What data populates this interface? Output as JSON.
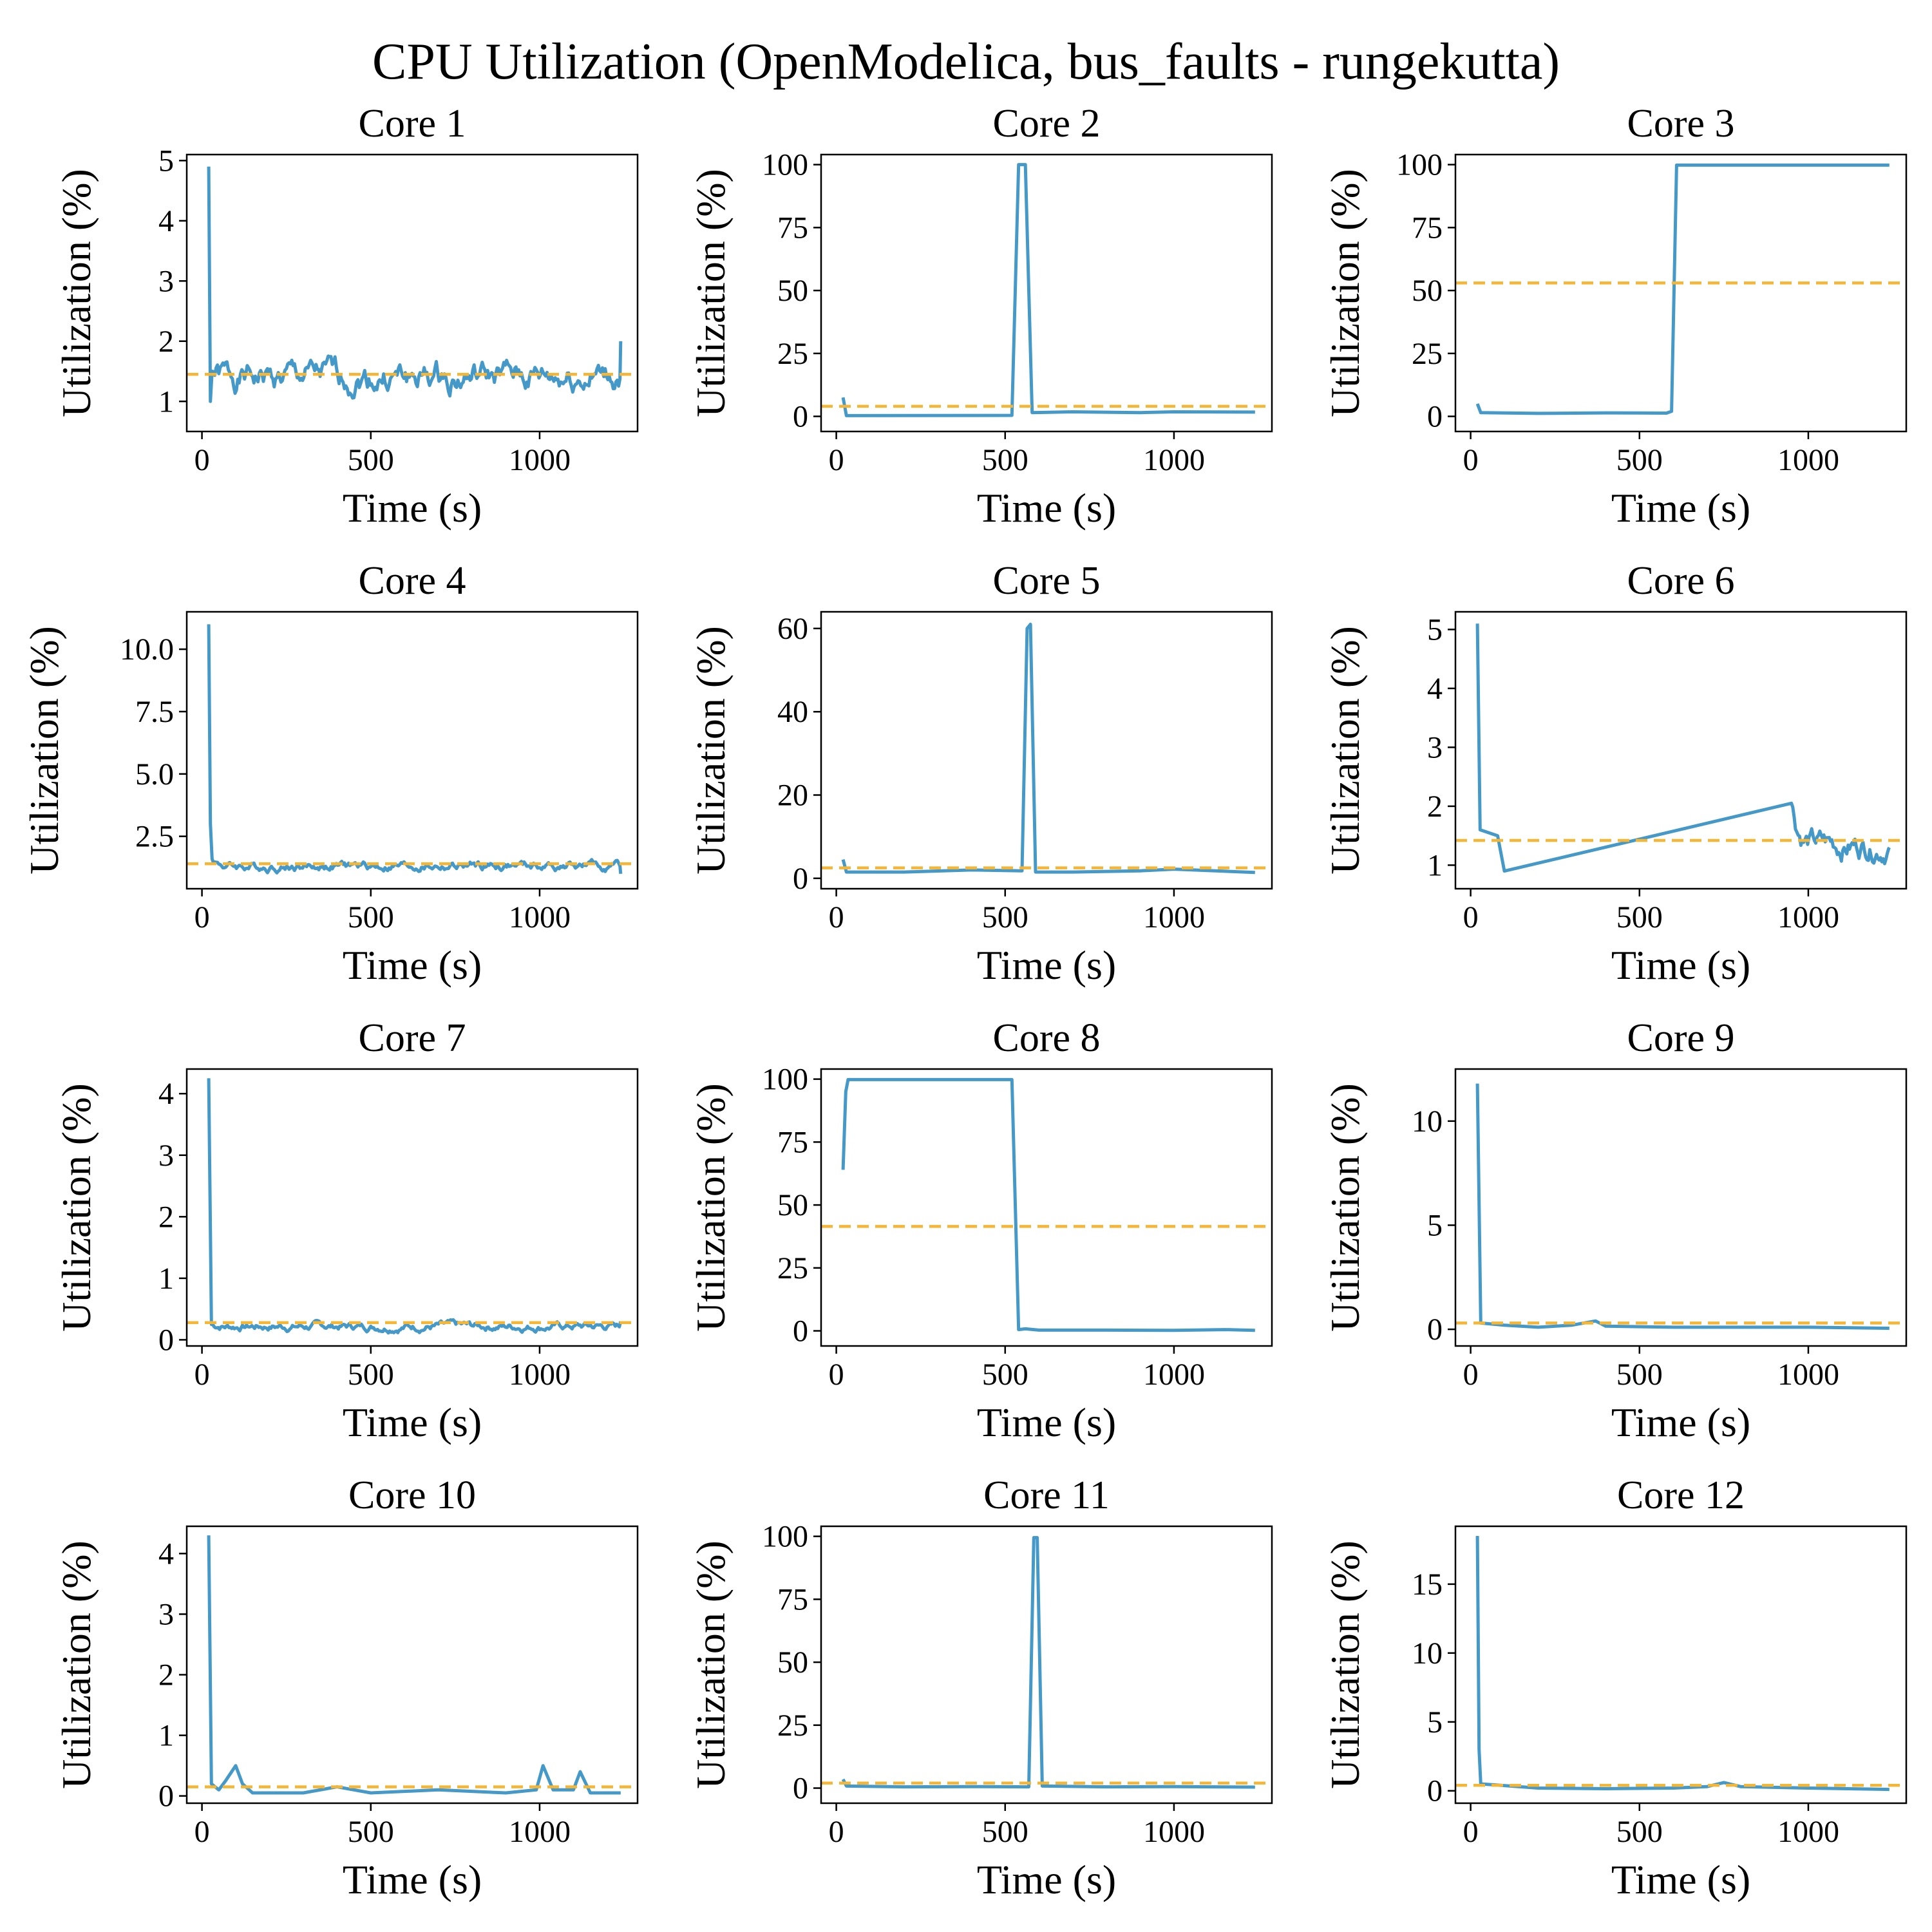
{
  "chart_data": {
    "type": "line",
    "title": "CPU Utilization (OpenModelica, bus_faults - rungekutta)",
    "colors": {
      "series": "#4499c9",
      "mean": "#f7b534"
    },
    "panels": [
      {
        "title": "Core 1",
        "xlabel": "Time (s)",
        "ylabel": "Utilization (%)",
        "xlim": [
          -45,
          1290
        ],
        "ylim": [
          0.5,
          5.1
        ],
        "xticks": [
          0,
          500,
          1000
        ],
        "yticks": [
          1,
          2,
          3,
          4,
          5
        ],
        "mean": 1.45,
        "series": {
          "style": "noisy",
          "base": 1.4,
          "amp": 0.32,
          "seed": 1,
          "points": [
            [
              20,
              4.9
            ],
            [
              25,
              1.0
            ],
            [
              30,
              1.5
            ],
            [
              1240,
              2.0
            ]
          ]
        }
      },
      {
        "title": "Core 2",
        "xlabel": "Time (s)",
        "ylabel": "Utilization (%)",
        "xlim": [
          -45,
          1290
        ],
        "ylim": [
          -6,
          104
        ],
        "xticks": [
          0,
          500,
          1000
        ],
        "yticks": [
          0,
          25,
          50,
          75,
          100
        ],
        "mean": 4,
        "series": {
          "style": "points",
          "points": [
            [
              20,
              7.5
            ],
            [
              30,
              0.3
            ],
            [
              520,
              0.4
            ],
            [
              540,
              100
            ],
            [
              560,
              100
            ],
            [
              580,
              1.5
            ],
            [
              700,
              1.8
            ],
            [
              900,
              1.5
            ],
            [
              1000,
              1.8
            ],
            [
              1240,
              1.7
            ]
          ]
        }
      },
      {
        "title": "Core 3",
        "xlabel": "Time (s)",
        "ylabel": "Utilization (%)",
        "xlim": [
          -45,
          1290
        ],
        "ylim": [
          -6,
          104
        ],
        "xticks": [
          0,
          500,
          1000
        ],
        "yticks": [
          0,
          25,
          50,
          75,
          100
        ],
        "mean": 53,
        "series": {
          "style": "points",
          "points": [
            [
              20,
              5
            ],
            [
              30,
              1.5
            ],
            [
              200,
              1.2
            ],
            [
              400,
              1.4
            ],
            [
              580,
              1.3
            ],
            [
              595,
              2.0
            ],
            [
              610,
              99.8
            ],
            [
              1240,
              99.8
            ]
          ]
        }
      },
      {
        "title": "Core 4",
        "xlabel": "Time (s)",
        "ylabel": "Utilization (%)",
        "xlim": [
          -45,
          1290
        ],
        "ylim": [
          0.4,
          11.5
        ],
        "xticks": [
          0,
          500,
          1000
        ],
        "yticks": [
          2.5,
          5.0,
          7.5,
          10.0
        ],
        "mean": 1.4,
        "series": {
          "style": "noisy",
          "base": 1.3,
          "amp": 0.25,
          "seed": 4,
          "points": [
            [
              20,
              11.0
            ],
            [
              25,
              3.0
            ],
            [
              30,
              1.6
            ],
            [
              1240,
              1.0
            ]
          ]
        }
      },
      {
        "title": "Core 5",
        "xlabel": "Time (s)",
        "ylabel": "Utilization (%)",
        "xlim": [
          -45,
          1290
        ],
        "ylim": [
          -2.5,
          64
        ],
        "xticks": [
          0,
          500,
          1000
        ],
        "yticks": [
          0,
          20,
          40,
          60
        ],
        "mean": 2.5,
        "series": {
          "style": "points",
          "points": [
            [
              20,
              4.5
            ],
            [
              30,
              1.5
            ],
            [
              200,
              1.5
            ],
            [
              400,
              2.0
            ],
            [
              550,
              1.8
            ],
            [
              565,
              60
            ],
            [
              575,
              61
            ],
            [
              590,
              1.5
            ],
            [
              700,
              1.5
            ],
            [
              900,
              1.8
            ],
            [
              1000,
              2.2
            ],
            [
              1240,
              1.4
            ]
          ]
        }
      },
      {
        "title": "Core 6",
        "xlabel": "Time (s)",
        "ylabel": "Utilization (%)",
        "xlim": [
          -45,
          1290
        ],
        "ylim": [
          0.6,
          5.3
        ],
        "xticks": [
          0,
          500,
          1000
        ],
        "yticks": [
          1,
          2,
          3,
          4,
          5
        ],
        "mean": 1.42,
        "series": {
          "style": "noisy",
          "base": 1.35,
          "amp": 0.3,
          "seed": 6,
          "points": [
            [
              20,
              5.1
            ],
            [
              28,
              1.6
            ],
            [
              80,
              1.5
            ],
            [
              100,
              0.9
            ],
            [
              950,
              2.05
            ],
            [
              1240,
              1.3
            ]
          ]
        }
      },
      {
        "title": "Core 7",
        "xlabel": "Time (s)",
        "ylabel": "Utilization (%)",
        "xlim": [
          -45,
          1290
        ],
        "ylim": [
          -0.1,
          4.4
        ],
        "xticks": [
          0,
          500,
          1000
        ],
        "yticks": [
          0,
          1,
          2,
          3,
          4
        ],
        "mean": 0.28,
        "series": {
          "style": "noisy",
          "base": 0.22,
          "amp": 0.09,
          "seed": 7,
          "points": [
            [
              20,
              4.25
            ],
            [
              28,
              0.25
            ],
            [
              1240,
              0.3
            ]
          ]
        }
      },
      {
        "title": "Core 8",
        "xlabel": "Time (s)",
        "ylabel": "Utilization (%)",
        "xlim": [
          -45,
          1290
        ],
        "ylim": [
          -6,
          104
        ],
        "xticks": [
          0,
          500,
          1000
        ],
        "yticks": [
          0,
          25,
          50,
          75,
          100
        ],
        "mean": 41.5,
        "series": {
          "style": "points",
          "points": [
            [
              20,
              64
            ],
            [
              28,
              95
            ],
            [
              35,
              99.8
            ],
            [
              520,
              99.8
            ],
            [
              540,
              0.5
            ],
            [
              560,
              0.8
            ],
            [
              600,
              0.3
            ],
            [
              800,
              0.3
            ],
            [
              1000,
              0.2
            ],
            [
              1150,
              0.5
            ],
            [
              1240,
              0.2
            ]
          ]
        }
      },
      {
        "title": "Core 9",
        "xlabel": "Time (s)",
        "ylabel": "Utilization (%)",
        "xlim": [
          -45,
          1290
        ],
        "ylim": [
          -0.8,
          12.5
        ],
        "xticks": [
          0,
          500,
          1000
        ],
        "yticks": [
          0,
          5,
          10
        ],
        "mean": 0.3,
        "series": {
          "style": "points",
          "points": [
            [
              20,
              11.8
            ],
            [
              30,
              0.3
            ],
            [
              100,
              0.2
            ],
            [
              200,
              0.1
            ],
            [
              300,
              0.2
            ],
            [
              370,
              0.4
            ],
            [
              400,
              0.15
            ],
            [
              600,
              0.1
            ],
            [
              800,
              0.1
            ],
            [
              1000,
              0.1
            ],
            [
              1240,
              0.05
            ]
          ]
        }
      },
      {
        "title": "Core 10",
        "xlabel": "Time (s)",
        "ylabel": "Utilization (%)",
        "xlim": [
          -45,
          1290
        ],
        "ylim": [
          -0.12,
          4.45
        ],
        "xticks": [
          0,
          500,
          1000
        ],
        "yticks": [
          0,
          1,
          2,
          3,
          4
        ],
        "mean": 0.15,
        "series": {
          "style": "points",
          "points": [
            [
              20,
              4.3
            ],
            [
              28,
              0.2
            ],
            [
              50,
              0.1
            ],
            [
              70,
              0.25
            ],
            [
              100,
              0.5
            ],
            [
              120,
              0.2
            ],
            [
              150,
              0.05
            ],
            [
              300,
              0.05
            ],
            [
              400,
              0.15
            ],
            [
              500,
              0.05
            ],
            [
              700,
              0.1
            ],
            [
              900,
              0.05
            ],
            [
              990,
              0.1
            ],
            [
              1010,
              0.5
            ],
            [
              1040,
              0.1
            ],
            [
              1100,
              0.1
            ],
            [
              1120,
              0.4
            ],
            [
              1150,
              0.05
            ],
            [
              1240,
              0.05
            ]
          ]
        }
      },
      {
        "title": "Core 11",
        "xlabel": "Time (s)",
        "ylabel": "Utilization (%)",
        "xlim": [
          -45,
          1290
        ],
        "ylim": [
          -6,
          104
        ],
        "xticks": [
          0,
          500,
          1000
        ],
        "yticks": [
          0,
          25,
          50,
          75,
          100
        ],
        "mean": 2,
        "series": {
          "style": "points",
          "points": [
            [
              20,
              3.5
            ],
            [
              30,
              0.8
            ],
            [
              200,
              0.5
            ],
            [
              400,
              0.6
            ],
            [
              570,
              0.5
            ],
            [
              585,
              99.5
            ],
            [
              595,
              99.5
            ],
            [
              610,
              0.8
            ],
            [
              800,
              0.5
            ],
            [
              1000,
              0.6
            ],
            [
              1240,
              0.4
            ]
          ]
        }
      },
      {
        "title": "Core 12",
        "xlabel": "Time (s)",
        "ylabel": "Utilization (%)",
        "xlim": [
          -45,
          1290
        ],
        "ylim": [
          -0.9,
          19.2
        ],
        "xticks": [
          0,
          500,
          1000
        ],
        "yticks": [
          0,
          5,
          10,
          15
        ],
        "mean": 0.4,
        "series": {
          "style": "points",
          "points": [
            [
              20,
              18.5
            ],
            [
              25,
              3
            ],
            [
              30,
              0.5
            ],
            [
              200,
              0.2
            ],
            [
              400,
              0.15
            ],
            [
              600,
              0.2
            ],
            [
              700,
              0.3
            ],
            [
              750,
              0.6
            ],
            [
              800,
              0.3
            ],
            [
              1000,
              0.2
            ],
            [
              1240,
              0.1
            ]
          ]
        }
      }
    ]
  }
}
